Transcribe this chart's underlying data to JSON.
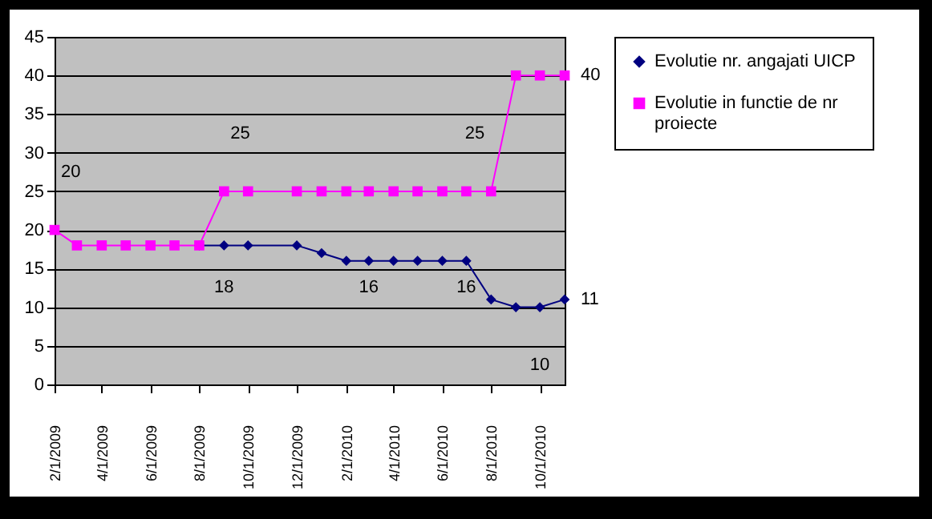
{
  "chart_data": {
    "type": "line",
    "x": [
      "2009-02-01",
      "2009-03-01",
      "2009-04-01",
      "2009-05-01",
      "2009-06-01",
      "2009-07-01",
      "2009-08-01",
      "2009-09-01",
      "2009-10-01",
      "2009-12-01",
      "2010-01-01",
      "2010-02-01",
      "2010-03-01",
      "2010-04-01",
      "2010-05-01",
      "2010-06-01",
      "2010-07-01",
      "2010-08-01",
      "2010-09-01",
      "2010-10-01",
      "2010-11-01"
    ],
    "series": [
      {
        "name": "Evolutie nr. angajati UICP",
        "color": "#000080",
        "marker": "diamond",
        "values": [
          null,
          null,
          null,
          null,
          null,
          null,
          18,
          18,
          18,
          18,
          17,
          16,
          16,
          16,
          16,
          16,
          16,
          11,
          10,
          10,
          11
        ],
        "value_labels": [
          null,
          null,
          null,
          null,
          null,
          null,
          null,
          "18",
          null,
          null,
          null,
          null,
          "16",
          null,
          null,
          null,
          "16",
          null,
          null,
          "10",
          "11"
        ]
      },
      {
        "name": "Evolutie in functie de nr proiecte",
        "color": "#ff00ff",
        "marker": "square",
        "values": [
          20,
          18,
          18,
          18,
          18,
          18,
          18,
          25,
          25,
          25,
          25,
          25,
          25,
          25,
          25,
          25,
          25,
          25,
          40,
          40,
          40
        ],
        "value_labels": [
          "20",
          null,
          null,
          null,
          null,
          null,
          null,
          "25",
          null,
          null,
          null,
          null,
          null,
          null,
          null,
          null,
          null,
          "25",
          null,
          null,
          "40"
        ]
      }
    ],
    "xlim": [
      "2009-02-01",
      "2010-11-01"
    ],
    "xticks": [
      {
        "value": "2009-02-01",
        "label": "2/1/2009"
      },
      {
        "value": "2009-04-01",
        "label": "4/1/2009"
      },
      {
        "value": "2009-06-01",
        "label": "6/1/2009"
      },
      {
        "value": "2009-08-01",
        "label": "8/1/2009"
      },
      {
        "value": "2009-10-01",
        "label": "10/1/2009"
      },
      {
        "value": "2009-12-01",
        "label": "12/1/2009"
      },
      {
        "value": "2010-02-01",
        "label": "2/1/2010"
      },
      {
        "value": "2010-04-01",
        "label": "4/1/2010"
      },
      {
        "value": "2010-06-01",
        "label": "6/1/2010"
      },
      {
        "value": "2010-08-01",
        "label": "8/1/2010"
      },
      {
        "value": "2010-10-01",
        "label": "10/1/2010"
      }
    ],
    "ylim": [
      0,
      45
    ],
    "yticks": [
      0,
      5,
      10,
      15,
      20,
      25,
      30,
      35,
      40,
      45
    ],
    "grid": "y",
    "legend": "right",
    "line_style": "solid"
  }
}
